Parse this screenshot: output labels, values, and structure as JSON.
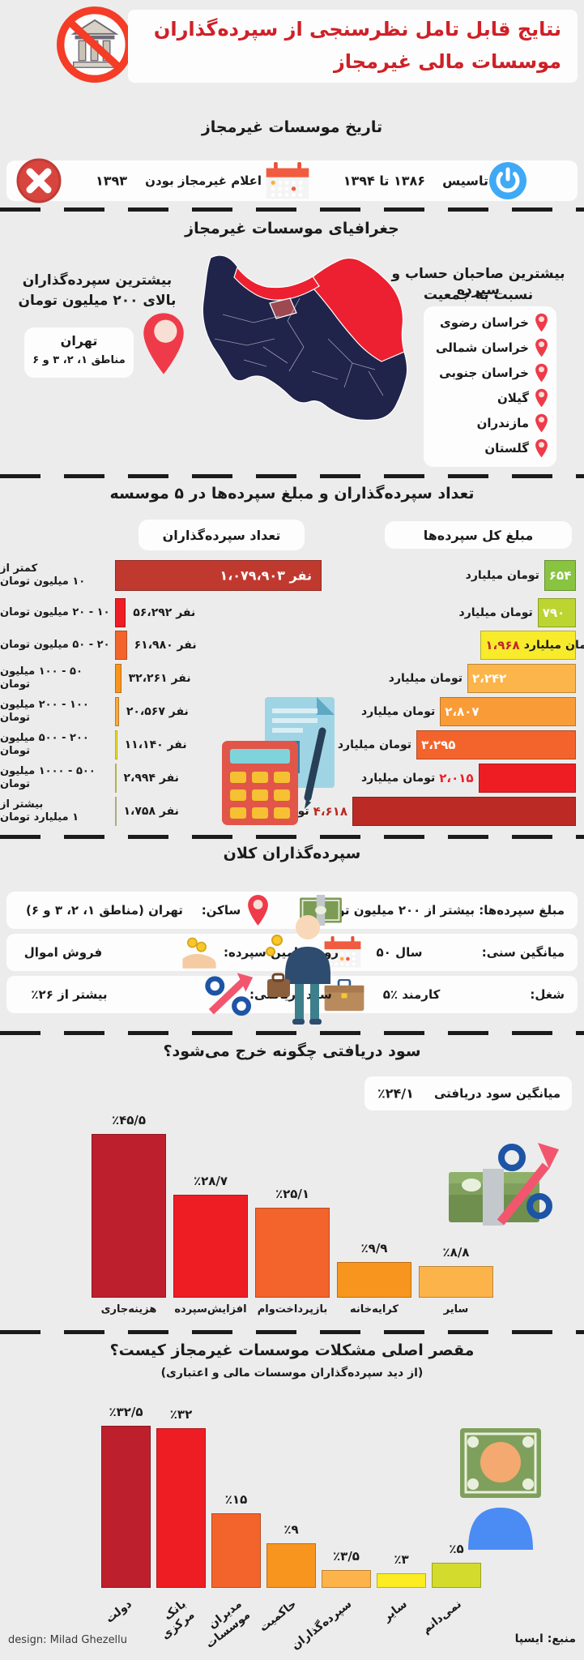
{
  "page": {
    "background": "#ECECEC",
    "accent_red": "#D02027",
    "ink": "#1B1B1B"
  },
  "header": {
    "title_line1": "نتایج قابل تامل نظرسنجی از سپرده‌گذاران",
    "title_line2": "موسسات مالی غیرمجاز",
    "title_color": "#D02027"
  },
  "history": {
    "heading": "تاریخ موسسات غیرمجاز",
    "established_label": "تاسیس",
    "established_value": "۱۳۸۶ تا ۱۳۹۴",
    "declared_label": "اعلام غیرمجاز بودن",
    "declared_value": "۱۳۹۳"
  },
  "geography": {
    "heading": "جغرافیای موسسات غیرمجاز",
    "right_note_line1": "بیشترین صاحبان حساب و سپرده",
    "right_note_line2": "نسبت به جمعیت",
    "provinces": [
      "خراسان رضوی",
      "خراسان شمالی",
      "خراسان جنوبی",
      "گیلان",
      "مازندران",
      "گلستان"
    ],
    "left_note_line1": "بیشترین سپرده‌گذاران",
    "left_note_line2": "بالای ۲۰۰ میلیون تومان",
    "tehran_title": "تهران",
    "tehran_subtitle": "مناطق ۱، ۲، ۳ و ۶"
  },
  "major_depositors": {
    "heading": "سپرده‌گذاران کلان",
    "rows": [
      {
        "right": {
          "icon": "money-icon",
          "text": "مبلغ سپرده‌ها: بیشتر از ۲۰۰ میلیون تومان"
        },
        "left": {
          "icon": "pin-icon",
          "label": "ساکن:",
          "value": "تهران (مناطق ۱، ۲، ۳ و ۶)"
        }
      },
      {
        "right": {
          "icon": "calendar-icon",
          "label": "میانگین سنی:",
          "value": "۵۰ سال"
        },
        "left": {
          "icon": "hand-coins-icon",
          "label": "روش تامین سپرده:",
          "value": "فروش اموال"
        }
      },
      {
        "right": {
          "icon": "briefcase-icon",
          "label": "شغل:",
          "value": "۵٪ کارمند"
        },
        "left": {
          "icon": "percent-arrow-icon",
          "label": "سود دریافتی:",
          "value": "بیشتر از ‎٪۲۶"
        }
      }
    ]
  },
  "footer": {
    "design_credit": "design: Milad Ghezellu",
    "source": "منبع: ایسپا"
  },
  "chart_data": [
    {
      "type": "table",
      "title": "تعداد سپرده‌گذاران و مبلغ سپرده‌ها در ۵ موسسه",
      "col_depositors": "تعداد سپرده‌گذاران",
      "col_amounts": "مبلغ کل سپرده‌ها",
      "unit_count": "نفر",
      "unit_amount": "میلیارد تومان",
      "count_max": 1079903,
      "amount_max": 4618,
      "rows": [
        {
          "range_l1": "کمتر از",
          "range_l2": "۱۰ میلیون تومان",
          "count": 1079903,
          "count_fa": "۱،۰۷۹،۹۰۳",
          "amount": 654,
          "amount_fa": "۶۵۴",
          "count_color": "#C0392F",
          "amount_color": "#88C440",
          "amount_layout": "numin",
          "count_inside": true
        },
        {
          "range_l1": "۱۰ - ۲۰ میلیون تومان",
          "range_l2": "",
          "count": 56292,
          "count_fa": "۵۶،۲۹۲",
          "amount": 790,
          "amount_fa": "۷۹۰",
          "count_color": "#EE1D24",
          "amount_color": "#BCD531",
          "amount_layout": "numin",
          "count_inside": false
        },
        {
          "range_l1": "۲۰ - ۵۰ میلیون تومان",
          "range_l2": "",
          "count": 61980,
          "count_fa": "۶۱،۹۸۰",
          "amount": 1968,
          "amount_fa": "۱،۹۶۸",
          "count_color": "#F3642C",
          "amount_color": "#F7EB2C",
          "amount_layout": "in",
          "amount_num_color": "#C1272D",
          "count_inside": false
        },
        {
          "range_l1": "۵۰ - ۱۰۰ میلیون تومان",
          "range_l2": "",
          "count": 32261,
          "count_fa": "۳۲،۲۶۱",
          "amount": 2242,
          "amount_fa": "۲،۲۴۲",
          "count_color": "#F8941E",
          "amount_color": "#FBB54A",
          "amount_layout": "numin",
          "count_inside": false
        },
        {
          "range_l1": "۱۰۰ - ۲۰۰ میلیون تومان",
          "range_l2": "",
          "count": 20567,
          "count_fa": "۲۰،۵۶۷",
          "amount": 2807,
          "amount_fa": "۲،۸۰۷",
          "count_color": "#F9A83C",
          "amount_color": "#F99C38",
          "amount_layout": "numin",
          "count_inside": false
        },
        {
          "range_l1": "۲۰۰ - ۵۰۰ میلیون تومان",
          "range_l2": "",
          "count": 11140,
          "count_fa": "۱۱،۱۴۰",
          "amount": 3295,
          "amount_fa": "۳،۲۹۵",
          "count_color": "#F5E829",
          "amount_color": "#F3642C",
          "amount_layout": "numin",
          "count_inside": false
        },
        {
          "range_l1": "۵۰۰ - ۱۰۰۰ میلیون تومان",
          "range_l2": "",
          "count": 2994,
          "count_fa": "۲،۹۹۴",
          "amount": 2015,
          "amount_fa": "۲،۰۱۵",
          "count_color": "#EFEB66",
          "amount_color": "#EE1D24",
          "amount_layout": "out",
          "amount_num_color": "#EE1D24",
          "count_inside": false
        },
        {
          "range_l1": "بیشتر از",
          "range_l2": "۱ میلیارد تومان",
          "count": 1758,
          "count_fa": "۱،۷۵۸",
          "amount": 4618,
          "amount_fa": "۴،۶۱۸",
          "count_color": "#E6E3A8",
          "amount_color": "#BB2A24",
          "amount_layout": "out",
          "amount_num_color": "#BB2A24",
          "count_inside": false
        }
      ]
    },
    {
      "type": "bar",
      "title": "سود دریافتی چگونه خرج می‌شود؟",
      "avg_label": "میانگین سود دریافتی",
      "avg_value": "٪۲۴/۱",
      "categories": [
        "هزینه‌جاری",
        "افزایش‌سپرده",
        "بازپرداخت‌وام",
        "کرایه‌خانه",
        "سایر"
      ],
      "values": [
        45.5,
        28.7,
        25.1,
        9.9,
        8.8
      ],
      "value_labels": [
        "٪۴۵/۵",
        "٪۲۸/۷",
        "٪۲۵/۱",
        "٪۹/۹",
        "٪۸/۸"
      ],
      "colors": [
        "#BD202C",
        "#EE1D24",
        "#F3642C",
        "#F8951F",
        "#FBB34A"
      ],
      "ylim": [
        0,
        50
      ],
      "legend": "none",
      "grid": false
    },
    {
      "type": "bar",
      "title": "مقصر اصلی مشکلات موسسات غیرمجاز کیست؟",
      "subtitle": "(از دید سپرده‌گذاران موسسات مالی و اعتباری)",
      "categories": [
        "دولت",
        "بانک مرکزی",
        "مدیران موسسات",
        "حاکمیت",
        "سپرده‌گذاران",
        "سایر",
        "نمی‌دانم"
      ],
      "values": [
        32.5,
        32,
        15,
        9,
        3.5,
        3,
        5
      ],
      "value_labels": [
        "٪۳۲/۵",
        "٪۳۲",
        "٪۱۵",
        "٪۹",
        "٪۳/۵",
        "٪۳",
        "٪۵"
      ],
      "colors": [
        "#BD202C",
        "#EE1D24",
        "#F3642C",
        "#F8951F",
        "#FBB34A",
        "#FBEC23",
        "#D3DB2D"
      ],
      "ylim": [
        0,
        35
      ],
      "legend": "none",
      "grid": false
    }
  ]
}
